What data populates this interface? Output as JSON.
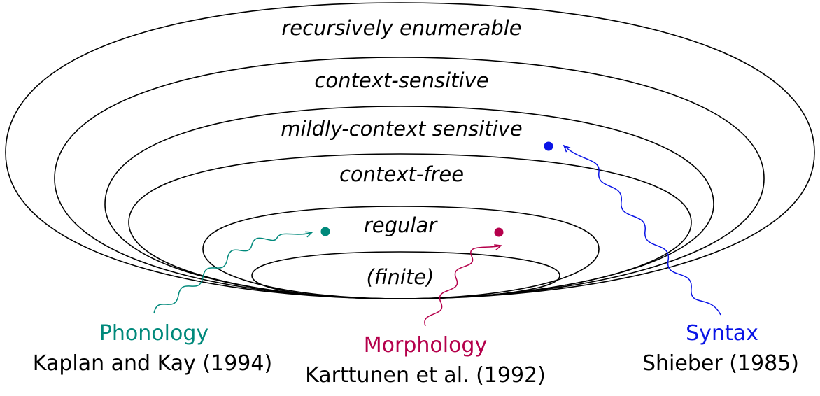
{
  "language_classes": [
    {
      "label": "recursively enumerable"
    },
    {
      "label": "context-sensitive"
    },
    {
      "label": "mildly-context sensitive"
    },
    {
      "label": "context-free"
    },
    {
      "label": "regular"
    },
    {
      "label": "(finite)"
    }
  ],
  "annotations": {
    "phonology": {
      "title": "Phonology",
      "citation": "Kaplan and Kay (1994)",
      "color": "#00897b"
    },
    "morphology": {
      "title": "Morphology",
      "citation": "Karttunen et al. (1992)",
      "color": "#b5004b"
    },
    "syntax": {
      "title": "Syntax",
      "citation": "Shieber (1985)",
      "color": "#0a14e6"
    }
  }
}
